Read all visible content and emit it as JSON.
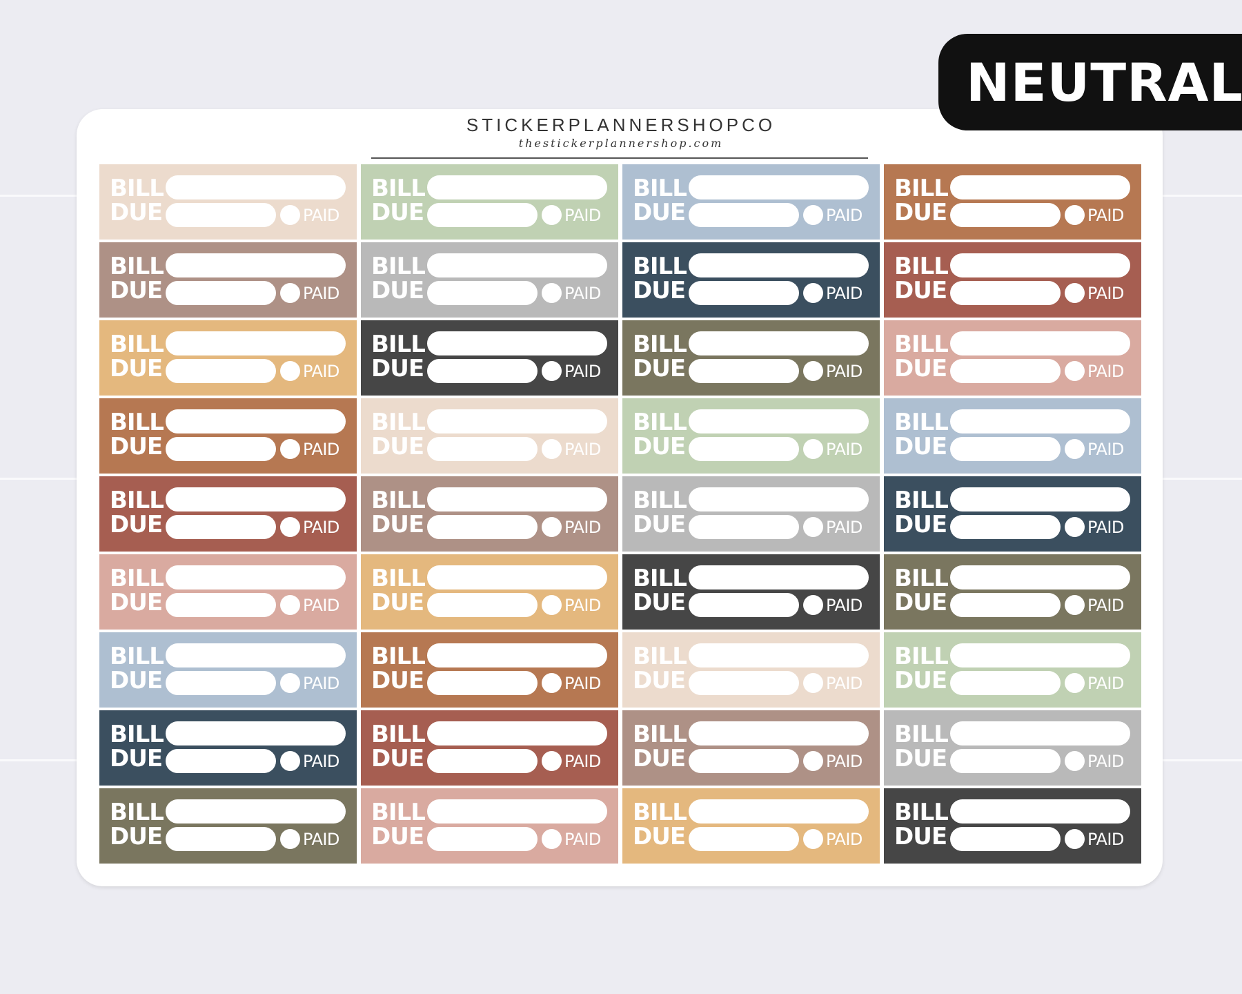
{
  "banner": {
    "label": "NEUTRAL"
  },
  "sheet": {
    "brand": "STICKERPLANNERSHOPCO",
    "website": "thestickerplannershop.com"
  },
  "sticker_text": {
    "line1": "BILL",
    "line2": "DUE",
    "checkbox_label": "PAID"
  },
  "palette": {
    "beige": "#ecdbcd",
    "sage": "#c0d1b3",
    "dusty_blue": "#aebfd1",
    "rust": "#b67852",
    "taupe": "#ae9186",
    "gray": "#b9b9b9",
    "navy": "#3b4f5f",
    "brick": "#a65e51",
    "tan": "#e4b87e",
    "charcoal": "#464646",
    "olive": "#7a765f",
    "dusty_rose": "#d9aaa0"
  },
  "stickers": [
    {
      "color": "beige"
    },
    {
      "color": "sage"
    },
    {
      "color": "dusty_blue"
    },
    {
      "color": "rust"
    },
    {
      "color": "taupe"
    },
    {
      "color": "gray"
    },
    {
      "color": "navy"
    },
    {
      "color": "brick"
    },
    {
      "color": "tan"
    },
    {
      "color": "charcoal"
    },
    {
      "color": "olive"
    },
    {
      "color": "dusty_rose"
    },
    {
      "color": "rust"
    },
    {
      "color": "beige"
    },
    {
      "color": "sage"
    },
    {
      "color": "dusty_blue"
    },
    {
      "color": "brick"
    },
    {
      "color": "taupe"
    },
    {
      "color": "gray"
    },
    {
      "color": "navy"
    },
    {
      "color": "dusty_rose"
    },
    {
      "color": "tan"
    },
    {
      "color": "charcoal"
    },
    {
      "color": "olive"
    },
    {
      "color": "dusty_blue"
    },
    {
      "color": "rust"
    },
    {
      "color": "beige"
    },
    {
      "color": "sage"
    },
    {
      "color": "navy"
    },
    {
      "color": "brick"
    },
    {
      "color": "taupe"
    },
    {
      "color": "gray"
    },
    {
      "color": "olive"
    },
    {
      "color": "dusty_rose"
    },
    {
      "color": "tan"
    },
    {
      "color": "charcoal"
    }
  ]
}
